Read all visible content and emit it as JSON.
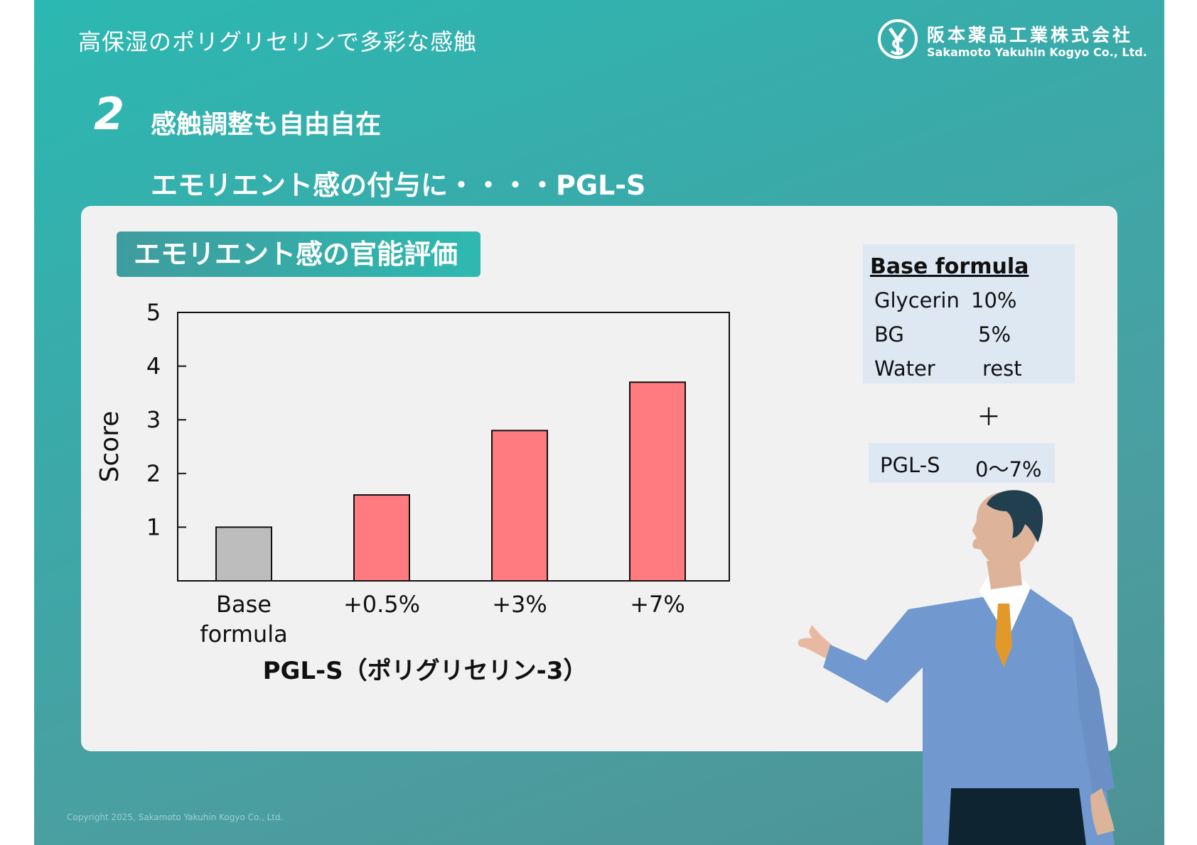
{
  "header": {
    "title": "高保湿のポリグリセリンで多彩な感触",
    "logo_ja": "阪本薬品工業株式会社",
    "logo_en": "Sakamoto Yakuhin Kogyo Co., Ltd."
  },
  "section": {
    "number": "2",
    "title": "感触調整も自由自在",
    "subtitle": "エモリエント感の付与に・・・・PGL-S"
  },
  "panel": {
    "title": "エモリエント感の官能評価"
  },
  "base_formula": {
    "heading": "Base formula",
    "rows": [
      {
        "name": "Glycerin",
        "value": "10%"
      },
      {
        "name": "BG",
        "value": "5%"
      },
      {
        "name": "Water",
        "value": "rest"
      }
    ],
    "plus": "＋",
    "additive": {
      "name": "PGL-S",
      "value": "0～7%"
    }
  },
  "chart_data": {
    "type": "bar",
    "categories": [
      "Base formula",
      "+0.5%",
      "+3%",
      "+7%"
    ],
    "values": [
      1.0,
      1.6,
      2.8,
      3.7
    ],
    "xlabel": "PGL-S（ポリグリセリン-3）",
    "ylabel": "Score",
    "ylim": [
      0,
      5
    ],
    "yticks": [
      1,
      2,
      3,
      4,
      5
    ],
    "bar_colors": [
      "#bdbdbd",
      "#ff7b80",
      "#ff7b80",
      "#ff7b80"
    ],
    "grid": false
  },
  "footer": {
    "copyright": "Copyright 2025, Sakamoto Yakuhin Kogyo Co., Ltd."
  },
  "colors": {
    "accent": "#2cb8b2",
    "bar_highlight": "#ff7b80",
    "bar_base": "#bdbdbd"
  }
}
